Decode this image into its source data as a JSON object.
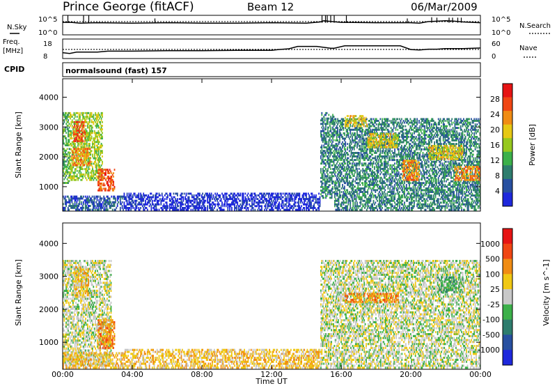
{
  "header": {
    "station": "Prince George (fitACF)",
    "beam": "Beam 12",
    "date": "06/Mar/2009"
  },
  "chart_data": [
    {
      "type": "line",
      "panel": "noise",
      "left_label": "N.Sky",
      "right_label": "N.Search",
      "y_ticks_left": [
        "10^5",
        "10^0"
      ],
      "y_ticks_right": [
        "10^5",
        "10^0"
      ],
      "ylim": [
        0,
        5
      ],
      "scale": "log",
      "series": [
        {
          "name": "N.Sky",
          "x": [
            0,
            0.5,
            1,
            2,
            4,
            6,
            8,
            10,
            12,
            14,
            14.8,
            15,
            15.5,
            16,
            18,
            20,
            20.5,
            21,
            22,
            22.5,
            23,
            24
          ],
          "values": [
            3.2,
            3.2,
            3.0,
            3.1,
            3.0,
            3.1,
            3.0,
            3.0,
            3.1,
            3.0,
            3.3,
            3.6,
            3.4,
            3.2,
            3.1,
            3.1,
            3.0,
            3.4,
            3.6,
            3.5,
            3.3,
            3.1
          ]
        },
        {
          "name": "N.Search",
          "x": [
            0,
            6,
            12,
            18,
            24
          ],
          "values": [
            3.4,
            3.4,
            3.4,
            3.4,
            3.4
          ]
        }
      ],
      "spikes": [
        {
          "x": 0.3,
          "top": 5
        },
        {
          "x": 1.2,
          "top": 5
        },
        {
          "x": 1.5,
          "top": 5
        },
        {
          "x": 5.3,
          "top": 4.2
        },
        {
          "x": 14.9,
          "top": 5
        },
        {
          "x": 15.1,
          "top": 5
        },
        {
          "x": 15.2,
          "top": 5
        },
        {
          "x": 15.4,
          "top": 5
        },
        {
          "x": 15.6,
          "top": 5
        },
        {
          "x": 16.3,
          "top": 5
        },
        {
          "x": 19.8,
          "top": 4.2
        },
        {
          "x": 21.2,
          "top": 4.5
        },
        {
          "x": 21.5,
          "top": 4.4
        },
        {
          "x": 22.2,
          "top": 4.4
        },
        {
          "x": 22.4,
          "top": 4.4
        },
        {
          "x": 22.7,
          "top": 4.4
        },
        {
          "x": 22.9,
          "top": 4.4
        }
      ]
    },
    {
      "type": "line",
      "panel": "frequency",
      "left_label_1": "Freq.",
      "left_label_2": "[MHz]",
      "right_label": "Nave",
      "y_ticks_left": [
        "18",
        "8"
      ],
      "y_ticks_right": [
        "60",
        "0"
      ],
      "ylim": [
        8,
        18
      ],
      "series": [
        {
          "name": "Freq.",
          "x": [
            0,
            0.4,
            0.8,
            2,
            2.6,
            4,
            6,
            8,
            10,
            12,
            12.4,
            13,
            13.5,
            14.6,
            15.4,
            15.6,
            16.2,
            16.5,
            19.4,
            20,
            20.5,
            21,
            21.5,
            22,
            23,
            24
          ],
          "values": [
            11,
            10.6,
            11.3,
            11.3,
            11.8,
            11.8,
            12,
            12,
            12.2,
            12.2,
            12.6,
            13,
            14.2,
            14.2,
            13.3,
            13.3,
            14.5,
            14.5,
            14.5,
            12.6,
            12.4,
            12.8,
            12.8,
            13.1,
            13.1,
            13.4
          ]
        },
        {
          "name": "Nave",
          "x": [
            0,
            24
          ],
          "values": [
            28,
            28
          ]
        }
      ]
    },
    {
      "type": "heatmap",
      "panel": "power",
      "cpid_label": "CPID",
      "cpid_value": "normalsound (fast) 157",
      "ylabel": "Slant Range [km]",
      "y_ticks": [
        "1000",
        "2000",
        "3000",
        "4000"
      ],
      "ylim": [
        180,
        4620
      ],
      "xlim": [
        0,
        24
      ],
      "colorbar_label": "Power [dB]",
      "colorbar_ticks": [
        "4",
        "8",
        "12",
        "16",
        "20",
        "24",
        "28"
      ],
      "colors": [
        "#1e28dc",
        "#2850a0",
        "#2e7d6e",
        "#3cb04a",
        "#96c81e",
        "#e6c814",
        "#f08c14",
        "#f04614",
        "#e61414"
      ],
      "regions": [
        {
          "t0": 0.0,
          "t1": 0.4,
          "r0": 1100,
          "r1": 3500,
          "level": 3
        },
        {
          "t0": 0.4,
          "t1": 2.3,
          "r0": 1200,
          "r1": 3500,
          "level": 4
        },
        {
          "t0": 0.6,
          "t1": 1.3,
          "r0": 2500,
          "r1": 3200,
          "level": 7
        },
        {
          "t0": 0.5,
          "t1": 1.6,
          "r0": 1700,
          "r1": 2300,
          "level": 6
        },
        {
          "t0": 2.0,
          "t1": 3.0,
          "r0": 850,
          "r1": 1600,
          "level": 7
        },
        {
          "t0": 0.0,
          "t1": 3.5,
          "r0": 200,
          "r1": 700,
          "level": 1
        },
        {
          "t0": 3.5,
          "t1": 14.8,
          "r0": 200,
          "r1": 800,
          "level": 0
        },
        {
          "t0": 14.8,
          "t1": 15.6,
          "r0": 600,
          "r1": 3500,
          "level": 2
        },
        {
          "t0": 15.6,
          "t1": 24.0,
          "r0": 200,
          "r1": 3300,
          "level": 2
        },
        {
          "t0": 16.2,
          "t1": 17.5,
          "r0": 3000,
          "r1": 3400,
          "level": 5
        },
        {
          "t0": 17.5,
          "t1": 19.3,
          "r0": 2300,
          "r1": 2800,
          "level": 5
        },
        {
          "t0": 19.5,
          "t1": 20.5,
          "r0": 1200,
          "r1": 1900,
          "level": 6
        },
        {
          "t0": 21.0,
          "t1": 23.0,
          "r0": 1900,
          "r1": 2400,
          "level": 5
        },
        {
          "t0": 22.5,
          "t1": 24.0,
          "r0": 1200,
          "r1": 1700,
          "level": 6
        }
      ]
    },
    {
      "type": "heatmap",
      "panel": "velocity",
      "ylabel": "Slant Range [km]",
      "y_ticks": [
        "1000",
        "2000",
        "3000",
        "4000"
      ],
      "ylim": [
        180,
        4620
      ],
      "xlim": [
        0,
        24
      ],
      "xlabel": "Time UT",
      "x_ticks": [
        "00:00",
        "04:00",
        "08:00",
        "12:00",
        "16:00",
        "20:00",
        "00:00"
      ],
      "colorbar_label": "Velocity [m s^-1]",
      "colorbar_ticks": [
        "1000",
        "500",
        "100",
        "25",
        "-25",
        "-100",
        "-500",
        "-1000"
      ],
      "colors": [
        "#1e28dc",
        "#2850a0",
        "#2e7d6e",
        "#3cb04a",
        "#c8c8c8",
        "#f0c814",
        "#f08c14",
        "#f04614",
        "#e61414"
      ],
      "regions": [
        {
          "t0": 0.0,
          "t1": 2.8,
          "r0": 300,
          "r1": 3500,
          "level": 4
        },
        {
          "t0": 0.6,
          "t1": 1.5,
          "r0": 2400,
          "r1": 3300,
          "level": 5
        },
        {
          "t0": 2.0,
          "t1": 3.0,
          "r0": 800,
          "r1": 1700,
          "level": 6
        },
        {
          "t0": 0.0,
          "t1": 3.5,
          "r0": 200,
          "r1": 700,
          "level": 5
        },
        {
          "t0": 3.5,
          "t1": 14.8,
          "r0": 200,
          "r1": 800,
          "level": 5
        },
        {
          "t0": 14.8,
          "t1": 24.0,
          "r0": 200,
          "r1": 3500,
          "level": 4
        },
        {
          "t0": 16.2,
          "t1": 19.3,
          "r0": 2200,
          "r1": 2500,
          "level": 6
        },
        {
          "t0": 21.5,
          "t1": 23.0,
          "r0": 2500,
          "r1": 3000,
          "level": 3
        }
      ]
    }
  ]
}
